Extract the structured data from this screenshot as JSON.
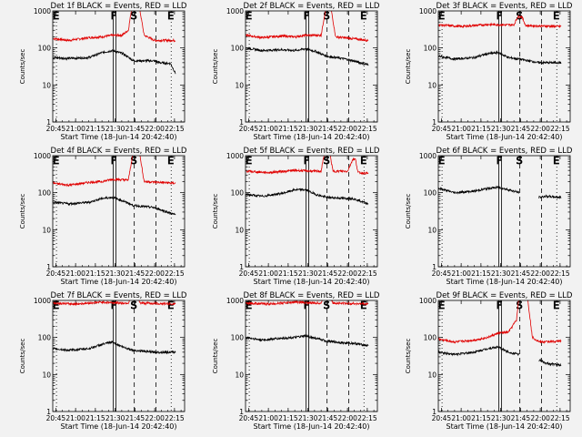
{
  "chart_data": {
    "type": "line",
    "grid": "3x3",
    "xlabel": "Start Time (18-Jun-14 20:42:40)",
    "ylabel": "Counts/sec",
    "x_ticks": [
      "20:45",
      "21:00",
      "21:15",
      "21:30",
      "21:45",
      "22:00",
      "22:15"
    ],
    "x_tick_minutes": [
      45,
      60,
      75,
      90,
      105,
      120,
      135
    ],
    "xlim_minutes": [
      42.67,
      142.67
    ],
    "y_scale": "log",
    "ylim": [
      1,
      1000
    ],
    "y_ticks": [
      "1",
      "10",
      "100",
      "1000"
    ],
    "markers": [
      {
        "label": "E",
        "minute": 45.5,
        "style": "dotted"
      },
      {
        "label": "F",
        "minute": 89.5,
        "style": "double-solid"
      },
      {
        "label": "S",
        "minute": 104.5,
        "style": "dashed"
      },
      {
        "label": "",
        "minute": 121.0,
        "style": "dashed"
      },
      {
        "label": "E",
        "minute": 132.5,
        "style": "dotted"
      }
    ],
    "series_legend": {
      "events_color": "#000000",
      "lld_color": "#e00000"
    },
    "panels": [
      {
        "title": "Det 1f BLACK = Events, RED = LLD",
        "events": [
          [
            43,
            55
          ],
          [
            55,
            52
          ],
          [
            70,
            55
          ],
          [
            80,
            75
          ],
          [
            88,
            85
          ],
          [
            96,
            70
          ],
          [
            104,
            45
          ],
          [
            119,
            45
          ],
          [
            124,
            40
          ],
          [
            132,
            38
          ],
          [
            136,
            20
          ]
        ],
        "lld": [
          [
            43,
            180
          ],
          [
            55,
            160
          ],
          [
            70,
            190
          ],
          [
            80,
            200
          ],
          [
            88,
            220
          ],
          [
            95,
            220
          ],
          [
            100,
            300
          ],
          [
            103,
            1500
          ],
          [
            108,
            1500
          ],
          [
            112,
            220
          ],
          [
            120,
            160
          ],
          [
            136,
            160
          ]
        ]
      },
      {
        "title": "Det 2f BLACK = Events, RED = LLD",
        "events": [
          [
            43,
            100
          ],
          [
            55,
            85
          ],
          [
            70,
            90
          ],
          [
            80,
            85
          ],
          [
            88,
            95
          ],
          [
            96,
            80
          ],
          [
            104,
            60
          ],
          [
            119,
            50
          ],
          [
            124,
            45
          ],
          [
            136,
            35
          ]
        ],
        "lld": [
          [
            43,
            220
          ],
          [
            55,
            190
          ],
          [
            70,
            210
          ],
          [
            80,
            200
          ],
          [
            88,
            220
          ],
          [
            100,
            220
          ],
          [
            104,
            1500
          ],
          [
            107,
            1500
          ],
          [
            111,
            200
          ],
          [
            136,
            160
          ]
        ]
      },
      {
        "title": "Det 3f BLACK = Events, RED = LLD",
        "events": [
          [
            43,
            60
          ],
          [
            55,
            50
          ],
          [
            70,
            55
          ],
          [
            80,
            70
          ],
          [
            88,
            75
          ],
          [
            96,
            55
          ],
          [
            104,
            50
          ],
          [
            119,
            40
          ],
          [
            124,
            40
          ],
          [
            136,
            40
          ]
        ],
        "lld": [
          [
            43,
            420
          ],
          [
            60,
            380
          ],
          [
            80,
            430
          ],
          [
            95,
            420
          ],
          [
            100,
            420
          ],
          [
            103,
            700
          ],
          [
            106,
            700
          ],
          [
            109,
            400
          ],
          [
            136,
            380
          ]
        ]
      },
      {
        "title": "Det 4f BLACK = Events, RED = LLD",
        "events": [
          [
            43,
            55
          ],
          [
            55,
            50
          ],
          [
            70,
            55
          ],
          [
            80,
            70
          ],
          [
            88,
            75
          ],
          [
            96,
            60
          ],
          [
            104,
            45
          ],
          [
            119,
            40
          ],
          [
            124,
            35
          ],
          [
            136,
            25
          ]
        ],
        "lld": [
          [
            43,
            180
          ],
          [
            55,
            160
          ],
          [
            70,
            190
          ],
          [
            80,
            200
          ],
          [
            88,
            230
          ],
          [
            100,
            220
          ],
          [
            104,
            1500
          ],
          [
            108,
            1500
          ],
          [
            112,
            200
          ],
          [
            136,
            180
          ]
        ]
      },
      {
        "title": "Det 5f BLACK = Events, RED = LLD",
        "events": [
          [
            43,
            90
          ],
          [
            55,
            80
          ],
          [
            70,
            95
          ],
          [
            80,
            120
          ],
          [
            88,
            120
          ],
          [
            96,
            90
          ],
          [
            104,
            75
          ],
          [
            119,
            70
          ],
          [
            124,
            70
          ],
          [
            136,
            50
          ]
        ],
        "lld": [
          [
            43,
            380
          ],
          [
            60,
            350
          ],
          [
            80,
            400
          ],
          [
            95,
            380
          ],
          [
            100,
            380
          ],
          [
            103,
            1500
          ],
          [
            106,
            1500
          ],
          [
            109,
            380
          ],
          [
            120,
            380
          ],
          [
            124,
            800
          ],
          [
            126,
            800
          ],
          [
            128,
            350
          ],
          [
            136,
            330
          ]
        ]
      },
      {
        "title": "Det 6f BLACK = Events, RED = LLD",
        "events": [
          [
            43,
            130
          ],
          [
            55,
            100
          ],
          [
            70,
            110
          ],
          [
            80,
            130
          ],
          [
            88,
            140
          ],
          [
            96,
            120
          ],
          [
            104,
            100
          ],
          [
            119,
            75
          ],
          [
            124,
            80
          ],
          [
            136,
            75
          ]
        ],
        "lld": []
      },
      {
        "title": "Det 7f BLACK = Events, RED = LLD",
        "events": [
          [
            43,
            50
          ],
          [
            55,
            45
          ],
          [
            70,
            50
          ],
          [
            80,
            65
          ],
          [
            88,
            75
          ],
          [
            96,
            55
          ],
          [
            104,
            45
          ],
          [
            119,
            40
          ],
          [
            124,
            40
          ],
          [
            136,
            40
          ]
        ],
        "lld": [
          [
            43,
            850
          ],
          [
            60,
            800
          ],
          [
            80,
            900
          ],
          [
            95,
            850
          ],
          [
            100,
            850
          ],
          [
            103,
            1500
          ],
          [
            106,
            1500
          ],
          [
            109,
            850
          ],
          [
            136,
            800
          ]
        ]
      },
      {
        "title": "Det 8f BLACK = Events, RED = LLD",
        "events": [
          [
            43,
            100
          ],
          [
            55,
            85
          ],
          [
            70,
            95
          ],
          [
            80,
            100
          ],
          [
            88,
            110
          ],
          [
            96,
            95
          ],
          [
            104,
            80
          ],
          [
            119,
            70
          ],
          [
            124,
            70
          ],
          [
            136,
            60
          ]
        ],
        "lld": [
          [
            43,
            850
          ],
          [
            60,
            800
          ],
          [
            80,
            900
          ],
          [
            95,
            850
          ],
          [
            100,
            850
          ],
          [
            103,
            1500
          ],
          [
            106,
            1500
          ],
          [
            109,
            850
          ],
          [
            136,
            800
          ]
        ]
      },
      {
        "title": "Det 9f BLACK = Events, RED = LLD",
        "events": [
          [
            43,
            40
          ],
          [
            55,
            35
          ],
          [
            70,
            40
          ],
          [
            80,
            50
          ],
          [
            88,
            55
          ],
          [
            96,
            40
          ],
          [
            104,
            35
          ],
          [
            119,
            25
          ],
          [
            124,
            20
          ],
          [
            136,
            18
          ]
        ],
        "lld": [
          [
            43,
            90
          ],
          [
            55,
            75
          ],
          [
            70,
            85
          ],
          [
            80,
            100
          ],
          [
            88,
            130
          ],
          [
            96,
            140
          ],
          [
            102,
            300
          ],
          [
            104,
            1500
          ],
          [
            110,
            1500
          ],
          [
            114,
            100
          ],
          [
            120,
            75
          ],
          [
            136,
            80
          ]
        ]
      }
    ]
  }
}
